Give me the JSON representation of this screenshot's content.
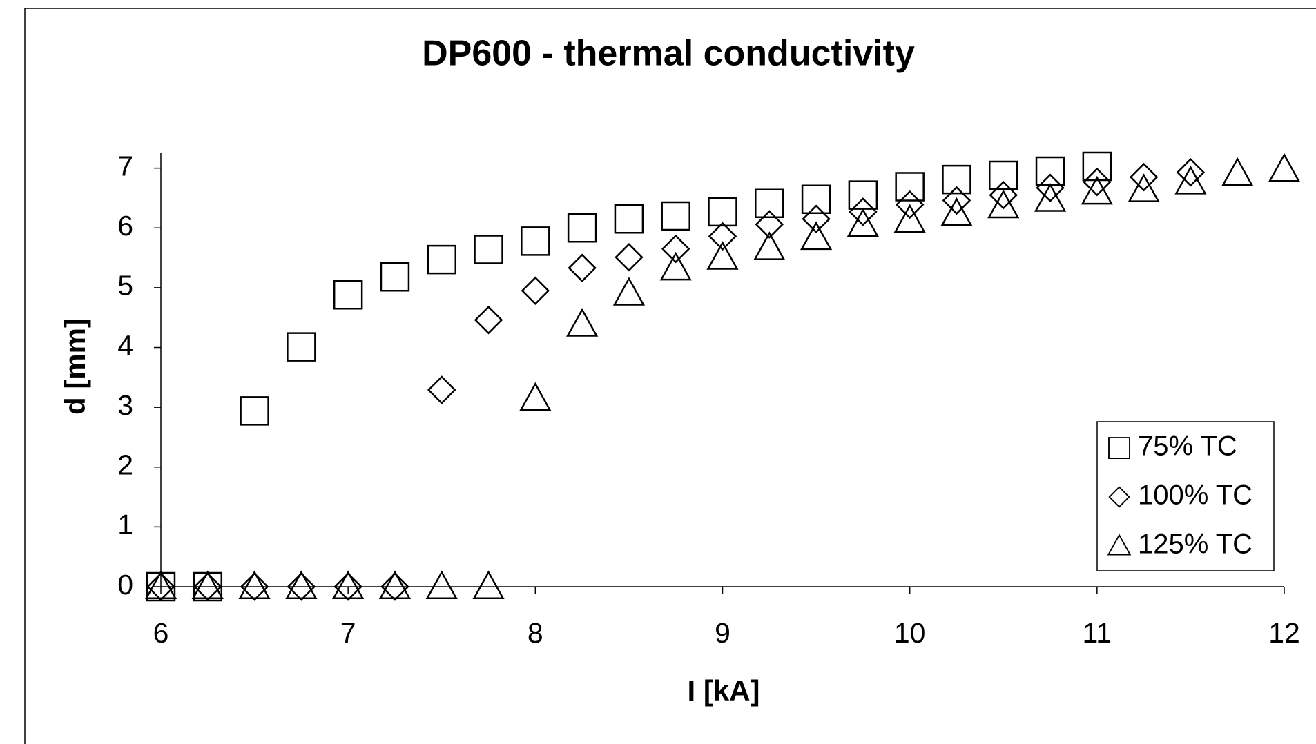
{
  "chart_data": {
    "type": "scatter",
    "title": "DP600 - thermal conductivity",
    "x_label": "I [kA]",
    "y_label": "d [mm]",
    "xlim": [
      6,
      12
    ],
    "xticks": [
      6,
      7,
      8,
      9,
      10,
      11,
      12
    ],
    "ylim": [
      0,
      7.25
    ],
    "yticks": [
      0,
      1,
      2,
      3,
      4,
      5,
      6,
      7
    ],
    "grid": false,
    "legend": "lower-right",
    "series": [
      {
        "name": "75% TC",
        "color": "#000000",
        "marker": "square",
        "x": [
          6,
          6.25,
          6.5,
          6.75,
          7,
          7.25,
          7.5,
          7.75,
          8,
          8.25,
          8.5,
          8.75,
          9,
          9.25,
          9.5,
          9.75,
          10,
          10.25,
          10.5,
          10.75,
          11
        ],
        "values": [
          0,
          0,
          2.94,
          4.01,
          4.88,
          5.18,
          5.47,
          5.64,
          5.78,
          6.0,
          6.15,
          6.2,
          6.27,
          6.41,
          6.48,
          6.55,
          6.69,
          6.81,
          6.88,
          6.95,
          7.03
        ]
      },
      {
        "name": "100% TC",
        "color": "#000000",
        "marker": "diamond",
        "x": [
          6,
          6.25,
          6.5,
          6.75,
          7,
          7.25,
          7.5,
          7.75,
          8,
          8.25,
          8.5,
          8.75,
          9,
          9.25,
          9.5,
          9.75,
          10,
          10.25,
          10.5,
          10.75,
          11,
          11.25,
          11.5
        ],
        "values": [
          0,
          0,
          0,
          0,
          0,
          0,
          3.29,
          4.46,
          4.95,
          5.33,
          5.51,
          5.65,
          5.86,
          6.06,
          6.15,
          6.27,
          6.39,
          6.46,
          6.55,
          6.67,
          6.77,
          6.85,
          6.93
        ]
      },
      {
        "name": "125% TC",
        "color": "#000000",
        "marker": "triangle",
        "x": [
          6,
          6.25,
          6.5,
          6.75,
          7,
          7.25,
          7.5,
          7.75,
          8,
          8.25,
          8.5,
          8.75,
          9,
          9.25,
          9.5,
          9.75,
          10,
          10.25,
          10.5,
          10.75,
          11,
          11.25,
          11.5,
          11.75,
          12
        ],
        "values": [
          0,
          0,
          0,
          0,
          0,
          0,
          0,
          0,
          3.15,
          4.39,
          4.91,
          5.33,
          5.51,
          5.67,
          5.84,
          6.06,
          6.13,
          6.24,
          6.37,
          6.48,
          6.6,
          6.64,
          6.77,
          6.91,
          6.98
        ]
      }
    ]
  }
}
